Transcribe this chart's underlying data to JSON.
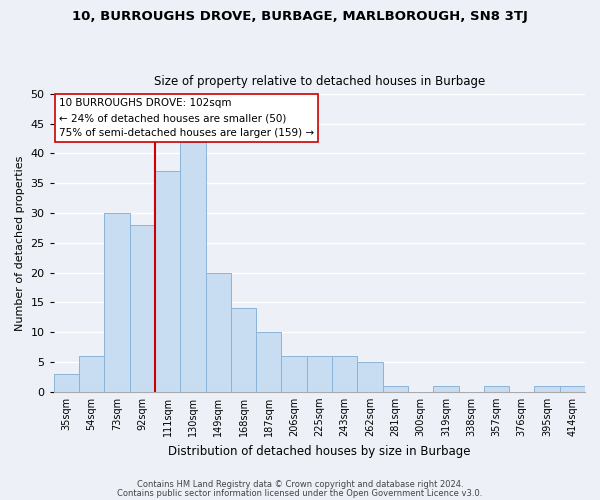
{
  "title": "10, BURROUGHS DROVE, BURBAGE, MARLBOROUGH, SN8 3TJ",
  "subtitle": "Size of property relative to detached houses in Burbage",
  "xlabel": "Distribution of detached houses by size in Burbage",
  "ylabel": "Number of detached properties",
  "bar_labels": [
    "35sqm",
    "54sqm",
    "73sqm",
    "92sqm",
    "111sqm",
    "130sqm",
    "149sqm",
    "168sqm",
    "187sqm",
    "206sqm",
    "225sqm",
    "243sqm",
    "262sqm",
    "281sqm",
    "300sqm",
    "319sqm",
    "338sqm",
    "357sqm",
    "376sqm",
    "395sqm",
    "414sqm"
  ],
  "bar_values": [
    3,
    6,
    30,
    28,
    37,
    42,
    20,
    14,
    10,
    6,
    6,
    6,
    5,
    1,
    0,
    1,
    0,
    1,
    0,
    1,
    1
  ],
  "bar_color": "#c9ddf2",
  "bar_edge_color": "#8ab4d8",
  "vline_pos": 3.5,
  "vline_color": "#cc0000",
  "annotation_title": "10 BURROUGHS DROVE: 102sqm",
  "annotation_line1": "← 24% of detached houses are smaller (50)",
  "annotation_line2": "75% of semi-detached houses are larger (159) →",
  "annotation_box_color": "#ffffff",
  "annotation_box_edge": "#cc0000",
  "ylim": [
    0,
    50
  ],
  "yticks": [
    0,
    5,
    10,
    15,
    20,
    25,
    30,
    35,
    40,
    45,
    50
  ],
  "footer1": "Contains HM Land Registry data © Crown copyright and database right 2024.",
  "footer2": "Contains public sector information licensed under the Open Government Licence v3.0.",
  "background_color": "#edf1f7",
  "plot_bg_color": "#edf1f7",
  "grid_color": "#ffffff"
}
